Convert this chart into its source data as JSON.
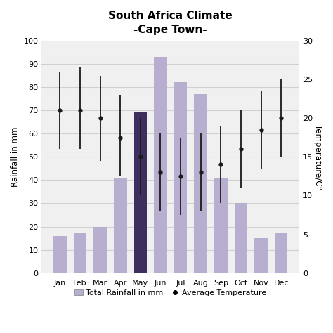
{
  "title_line1": "South Africa Climate",
  "title_line2": "-Cape Town-",
  "months": [
    "Jan",
    "Feb",
    "Mar",
    "Apr",
    "May",
    "Jun",
    "Jul",
    "Aug",
    "Sep",
    "Oct",
    "Nov",
    "Dec"
  ],
  "rainfall_mm": [
    16,
    17,
    20,
    41,
    69,
    93,
    82,
    77,
    41,
    30,
    15,
    17
  ],
  "bar_colors": [
    "#b8aecf",
    "#b8aecf",
    "#b8aecf",
    "#b8aecf",
    "#3d2e5e",
    "#b8aecf",
    "#b8aecf",
    "#b8aecf",
    "#b8aecf",
    "#b8aecf",
    "#b8aecf",
    "#b8aecf"
  ],
  "temp_avg": [
    21,
    21,
    20,
    17.5,
    15,
    13,
    12.5,
    13,
    14,
    16,
    18.5,
    20
  ],
  "temp_high": [
    26,
    26.5,
    25.5,
    23,
    20,
    18,
    17.5,
    18,
    19,
    21,
    23.5,
    25
  ],
  "temp_low": [
    16,
    16,
    14.5,
    12.5,
    10,
    8,
    7.5,
    8,
    9,
    11,
    13.5,
    15
  ],
  "ylabel_left": "Rainfall in mm",
  "ylabel_right": "Temperature/C°",
  "ylim_left": [
    0,
    100
  ],
  "ylim_right": [
    0,
    30
  ],
  "yticks_left": [
    0,
    10,
    20,
    30,
    40,
    50,
    60,
    70,
    80,
    90,
    100
  ],
  "yticks_right": [
    0,
    5,
    10,
    15,
    20,
    25,
    30
  ],
  "legend_rainfall_label": "Total Rainfall in mm",
  "legend_temp_label": "Average Temperature",
  "bar_color_light": "#b8aecf",
  "bar_color_dark": "#3d2e5e",
  "errorbar_color": "#1a1a1a",
  "grid_color": "#d0d0d0",
  "background_color": "#f0f0f0"
}
